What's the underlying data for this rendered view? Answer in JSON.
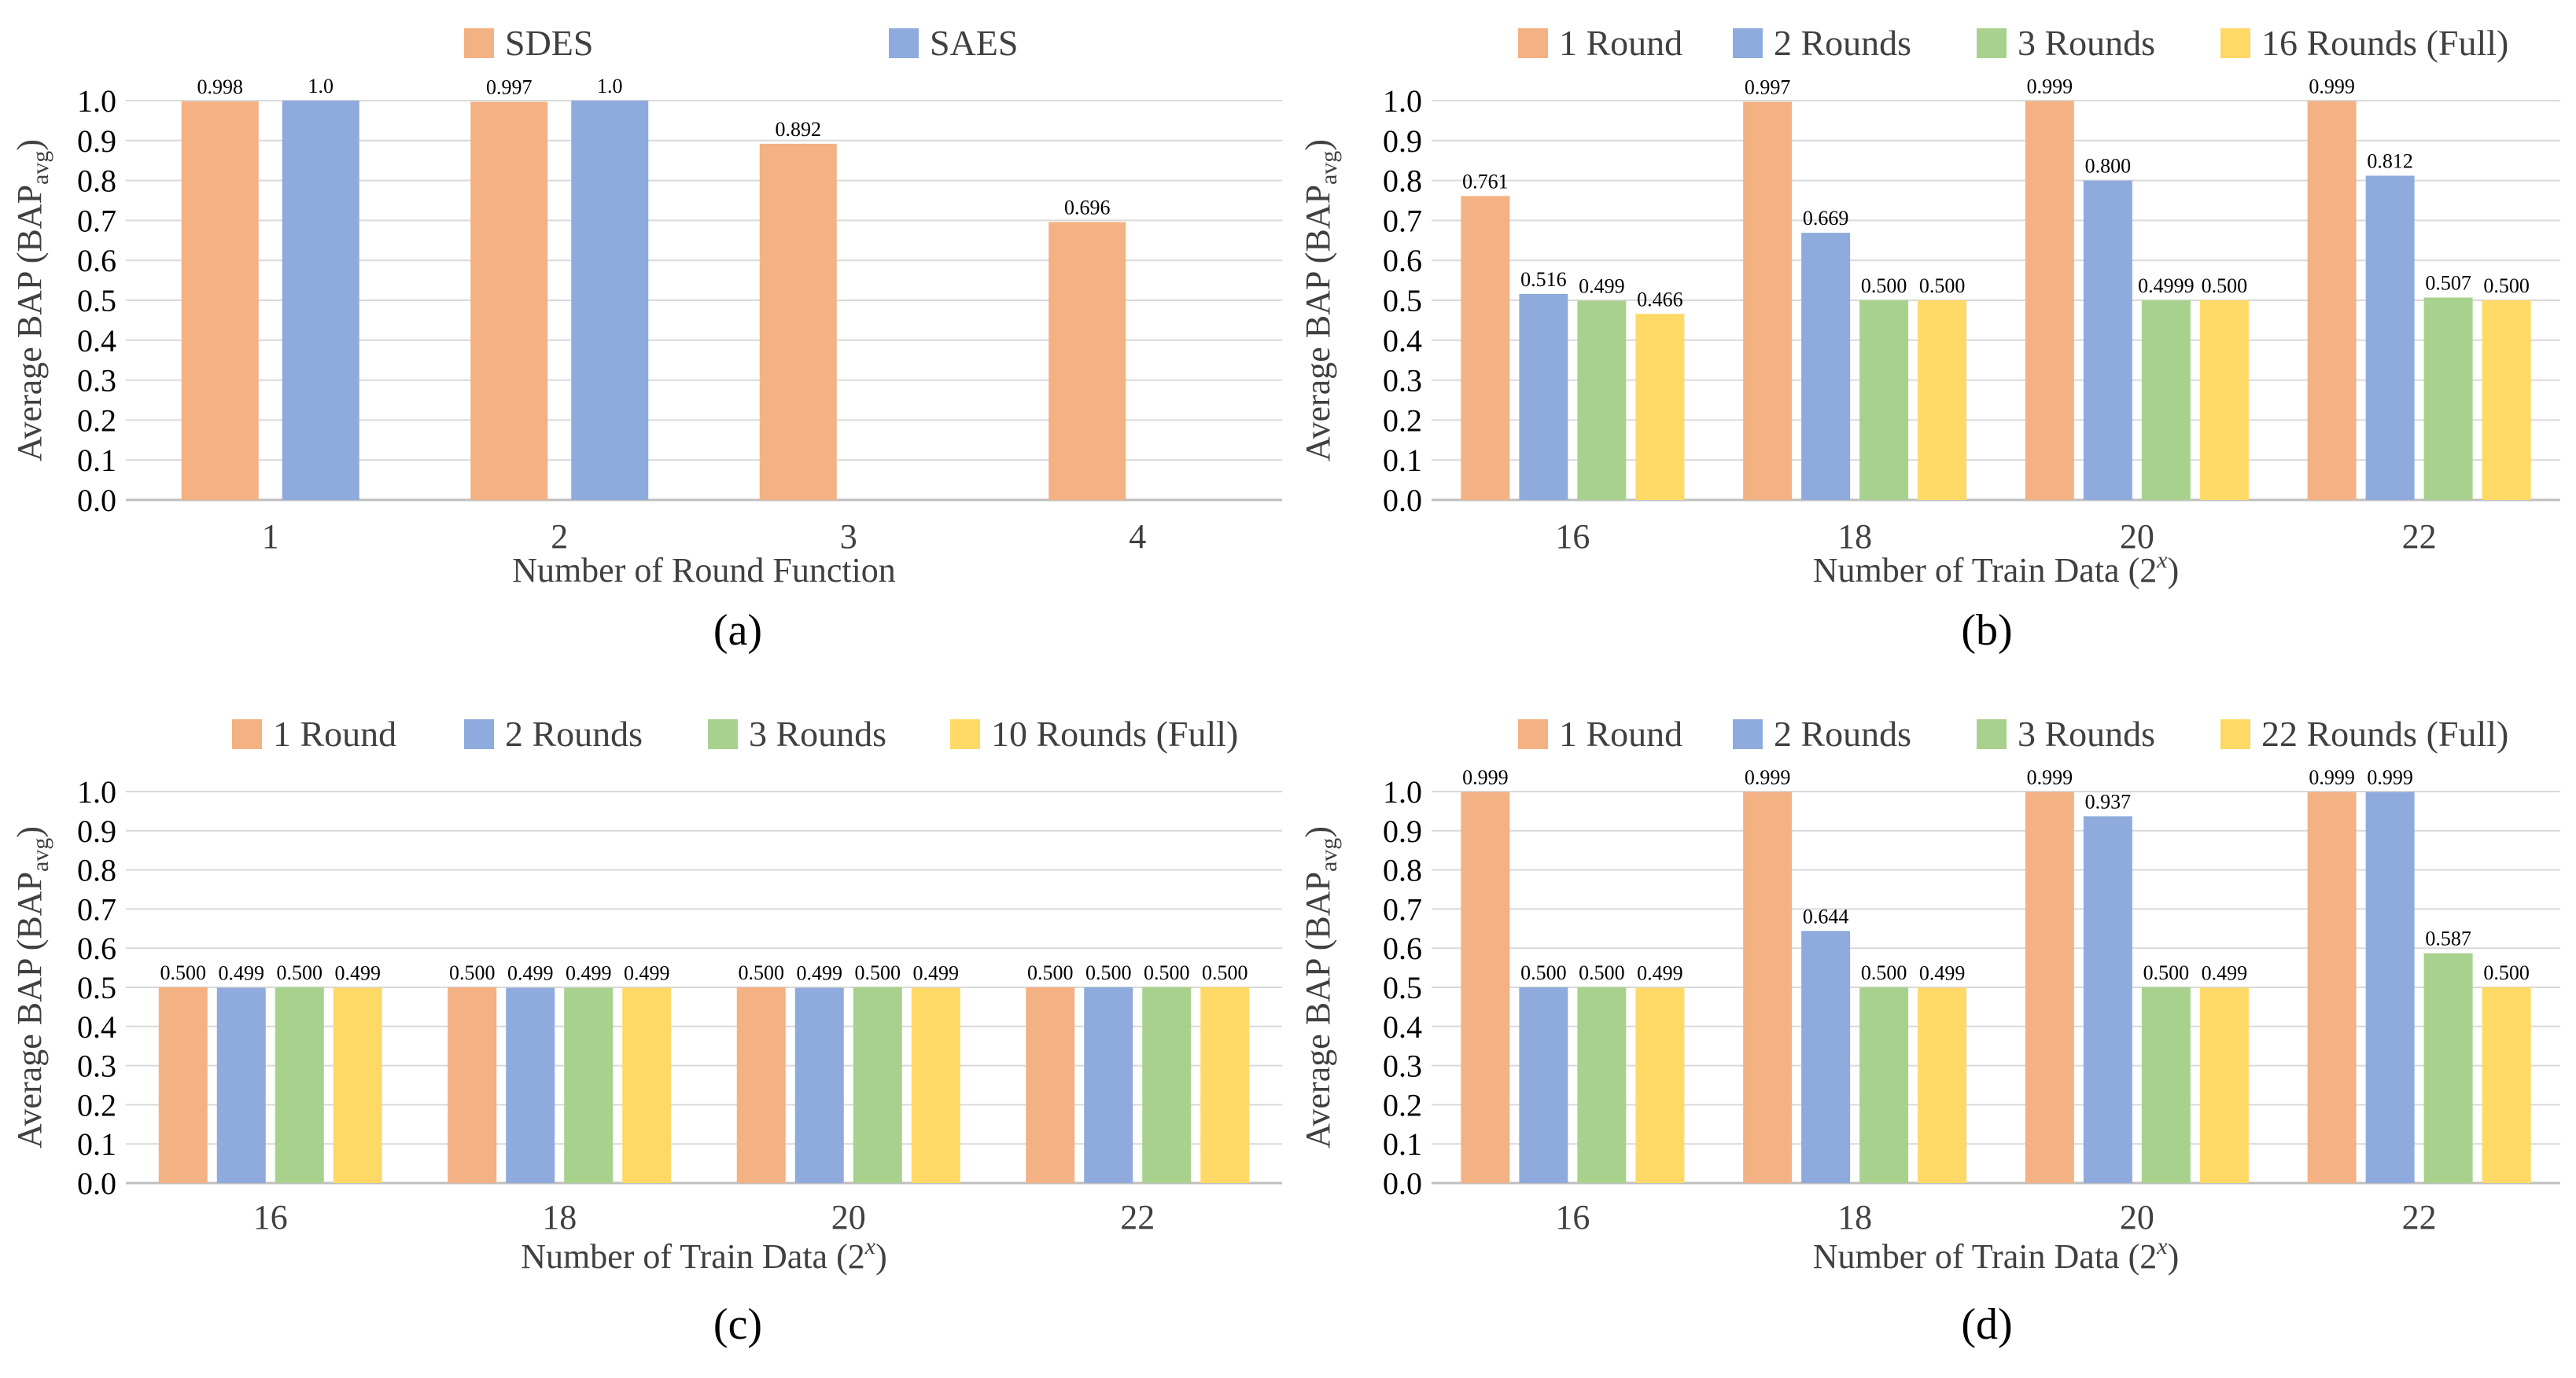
{
  "chart_data": [
    {
      "type": "bar",
      "panel_label": "(a)",
      "legend": [
        "SDES",
        "SAES"
      ],
      "xlabel": "Number of Round Function",
      "xlabel_sup": "",
      "xlabel_end": "",
      "ylabel_main": "Average BAP (BAP",
      "ylabel_sub": "avg",
      "ylabel_end": ")",
      "ylim": [
        0,
        1
      ],
      "yticks": [
        "0.0",
        "0.1",
        "0.2",
        "0.3",
        "0.4",
        "0.5",
        "0.6",
        "0.7",
        "0.8",
        "0.9",
        "1.0"
      ],
      "categories": [
        "1",
        "2",
        "3",
        "4"
      ],
      "series": [
        {
          "name": "SDES",
          "values": [
            0.998,
            0.997,
            0.892,
            0.696
          ],
          "labels": [
            "0.998",
            "0.997",
            "0.892",
            "0.696"
          ]
        },
        {
          "name": "SAES",
          "values": [
            1.0,
            1.0,
            null,
            null
          ],
          "labels": [
            "1.0",
            "1.0",
            "",
            ""
          ]
        }
      ],
      "grid": true,
      "legend_position": "top"
    },
    {
      "type": "bar",
      "panel_label": "(b)",
      "legend": [
        "1 Round",
        "2 Rounds",
        "3 Rounds",
        "16 Rounds (Full)"
      ],
      "xlabel": "Number of Train Data (2",
      "xlabel_sup": "x",
      "xlabel_end": ")",
      "ylabel_main": "Average BAP (BAP",
      "ylabel_sub": "avg",
      "ylabel_end": ")",
      "ylim": [
        0,
        1
      ],
      "yticks": [
        "0.0",
        "0.1",
        "0.2",
        "0.3",
        "0.4",
        "0.5",
        "0.6",
        "0.7",
        "0.8",
        "0.9",
        "1.0"
      ],
      "categories": [
        "16",
        "18",
        "20",
        "22"
      ],
      "series": [
        {
          "name": "1 Round",
          "values": [
            0.761,
            0.997,
            0.999,
            0.999
          ],
          "labels": [
            "0.761",
            "0.997",
            "0.999",
            "0.999"
          ]
        },
        {
          "name": "2 Rounds",
          "values": [
            0.516,
            0.669,
            0.8,
            0.812
          ],
          "labels": [
            "0.516",
            "0.669",
            "0.800",
            "0.812"
          ]
        },
        {
          "name": "3 Rounds",
          "values": [
            0.499,
            0.5,
            0.4999,
            0.507
          ],
          "labels": [
            "0.499",
            "0.500",
            "0.4999",
            "0.507"
          ]
        },
        {
          "name": "16 Rounds (Full)",
          "values": [
            0.466,
            0.5,
            0.5,
            0.5
          ],
          "labels": [
            "0.466",
            "0.500",
            "0.500",
            "0.500"
          ]
        }
      ],
      "grid": true,
      "legend_position": "top"
    },
    {
      "type": "bar",
      "panel_label": "(c)",
      "legend": [
        "1 Round",
        "2 Rounds",
        "3 Rounds",
        "10 Rounds (Full)"
      ],
      "xlabel": "Number of Train Data (2",
      "xlabel_sup": "x",
      "xlabel_end": ")",
      "ylabel_main": "Average BAP (BAP",
      "ylabel_sub": "avg",
      "ylabel_end": ")",
      "ylim": [
        0,
        1
      ],
      "yticks": [
        "0.0",
        "0.1",
        "0.2",
        "0.3",
        "0.4",
        "0.5",
        "0.6",
        "0.7",
        "0.8",
        "0.9",
        "1.0"
      ],
      "categories": [
        "16",
        "18",
        "20",
        "22"
      ],
      "series": [
        {
          "name": "1 Round",
          "values": [
            0.5,
            0.5,
            0.5,
            0.5
          ],
          "labels": [
            "0.500",
            "0.500",
            "0.500",
            "0.500"
          ]
        },
        {
          "name": "2 Rounds",
          "values": [
            0.499,
            0.499,
            0.499,
            0.5
          ],
          "labels": [
            "0.499",
            "0.499",
            "0.499",
            "0.500"
          ]
        },
        {
          "name": "3 Rounds",
          "values": [
            0.5,
            0.499,
            0.5,
            0.5
          ],
          "labels": [
            "0.500",
            "0.499",
            "0.500",
            "0.500"
          ]
        },
        {
          "name": "10 Rounds (Full)",
          "values": [
            0.499,
            0.499,
            0.499,
            0.5
          ],
          "labels": [
            "0.499",
            "0.499",
            "0.499",
            "0.500"
          ]
        }
      ],
      "grid": true,
      "legend_position": "top"
    },
    {
      "type": "bar",
      "panel_label": "(d)",
      "legend": [
        "1 Round",
        "2 Rounds",
        "3 Rounds",
        "22 Rounds (Full)"
      ],
      "xlabel": "Number of Train Data (2",
      "xlabel_sup": "x",
      "xlabel_end": ")",
      "ylabel_main": "Average BAP (BAP",
      "ylabel_sub": "avg",
      "ylabel_end": ")",
      "ylim": [
        0,
        1
      ],
      "yticks": [
        "0.0",
        "0.1",
        "0.2",
        "0.3",
        "0.4",
        "0.5",
        "0.6",
        "0.7",
        "0.8",
        "0.9",
        "1.0"
      ],
      "categories": [
        "16",
        "18",
        "20",
        "22"
      ],
      "series": [
        {
          "name": "1 Round",
          "values": [
            0.999,
            0.999,
            0.999,
            0.999
          ],
          "labels": [
            "0.999",
            "0.999",
            "0.999",
            "0.999"
          ]
        },
        {
          "name": "2 Rounds",
          "values": [
            0.5,
            0.644,
            0.937,
            0.999
          ],
          "labels": [
            "0.500",
            "0.644",
            "0.937",
            "0.999"
          ]
        },
        {
          "name": "3 Rounds",
          "values": [
            0.5,
            0.5,
            0.5,
            0.587
          ],
          "labels": [
            "0.500",
            "0.500",
            "0.500",
            "0.587"
          ]
        },
        {
          "name": "22 Rounds (Full)",
          "values": [
            0.499,
            0.499,
            0.499,
            0.5
          ],
          "labels": [
            "0.499",
            "0.499",
            "0.499",
            "0.500"
          ]
        }
      ],
      "grid": true,
      "legend_position": "top"
    }
  ],
  "colors": {
    "orange": "#F4B183",
    "blue": "#8FAADC",
    "green": "#A9D18E",
    "yellow": "#FFD966",
    "grid": "#D9D9D9",
    "axis": "#BFBFBF",
    "text": "#404040",
    "label": "#000000"
  }
}
